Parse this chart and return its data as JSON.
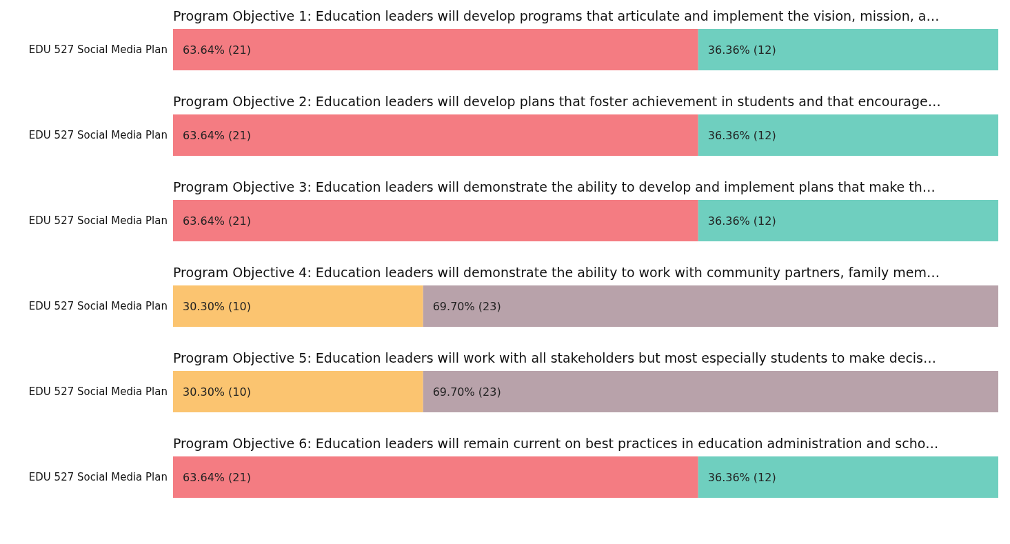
{
  "chart_data": [
    {
      "type": "bar",
      "orientation": "horizontal",
      "stacked": true,
      "title": "Program Objective 1: Education leaders will develop programs that articulate and implement the vision, mission, a…",
      "categories": [
        "EDU 527 Social Media Plan"
      ],
      "series": [
        {
          "color": "#f47c82",
          "values": [
            63.64
          ],
          "value_labels": [
            "63.64% (21)"
          ]
        },
        {
          "color": "#6fcfbf",
          "values": [
            36.36
          ],
          "value_labels": [
            "36.36% (12)"
          ]
        }
      ],
      "grid": false,
      "legend": false,
      "tick_labels": "y"
    },
    {
      "type": "bar",
      "orientation": "horizontal",
      "stacked": true,
      "title": "Program Objective 2: Education leaders will develop plans that foster achievement in students and that encourage…",
      "categories": [
        "EDU 527 Social Media Plan"
      ],
      "series": [
        {
          "color": "#f47c82",
          "values": [
            63.64
          ],
          "value_labels": [
            "63.64% (21)"
          ]
        },
        {
          "color": "#6fcfbf",
          "values": [
            36.36
          ],
          "value_labels": [
            "36.36% (12)"
          ]
        }
      ],
      "grid": false,
      "legend": false,
      "tick_labels": "y"
    },
    {
      "type": "bar",
      "orientation": "horizontal",
      "stacked": true,
      "title": "Program Objective 3: Education leaders will demonstrate the ability to develop and implement plans that make th…",
      "categories": [
        "EDU 527 Social Media Plan"
      ],
      "series": [
        {
          "color": "#f47c82",
          "values": [
            63.64
          ],
          "value_labels": [
            "63.64% (21)"
          ]
        },
        {
          "color": "#6fcfbf",
          "values": [
            36.36
          ],
          "value_labels": [
            "36.36% (12)"
          ]
        }
      ],
      "grid": false,
      "legend": false,
      "tick_labels": "y"
    },
    {
      "type": "bar",
      "orientation": "horizontal",
      "stacked": true,
      "title": "Program Objective 4: Education leaders will demonstrate the ability to work with community partners, family mem…",
      "categories": [
        "EDU 527 Social Media Plan"
      ],
      "series": [
        {
          "color": "#fbc470",
          "values": [
            30.3
          ],
          "value_labels": [
            "30.30% (10)"
          ]
        },
        {
          "color": "#b8a2aa",
          "values": [
            69.7
          ],
          "value_labels": [
            "69.70% (23)"
          ]
        }
      ],
      "grid": false,
      "legend": false,
      "tick_labels": "y"
    },
    {
      "type": "bar",
      "orientation": "horizontal",
      "stacked": true,
      "title": "Program Objective 5: Education leaders will work with all stakeholders but most especially students to make decis…",
      "categories": [
        "EDU 527 Social Media Plan"
      ],
      "series": [
        {
          "color": "#fbc470",
          "values": [
            30.3
          ],
          "value_labels": [
            "30.30% (10)"
          ]
        },
        {
          "color": "#b8a2aa",
          "values": [
            69.7
          ],
          "value_labels": [
            "69.70% (23)"
          ]
        }
      ],
      "grid": false,
      "legend": false,
      "tick_labels": "y"
    },
    {
      "type": "bar",
      "orientation": "horizontal",
      "stacked": true,
      "title": "Program Objective 6: Education leaders will remain current on best practices in education administration and scho…",
      "categories": [
        "EDU 527 Social Media Plan"
      ],
      "series": [
        {
          "color": "#f47c82",
          "values": [
            63.64
          ],
          "value_labels": [
            "63.64% (21)"
          ]
        },
        {
          "color": "#6fcfbf",
          "values": [
            36.36
          ],
          "value_labels": [
            "36.36% (12)"
          ]
        }
      ],
      "grid": false,
      "legend": false,
      "tick_labels": "y"
    }
  ]
}
